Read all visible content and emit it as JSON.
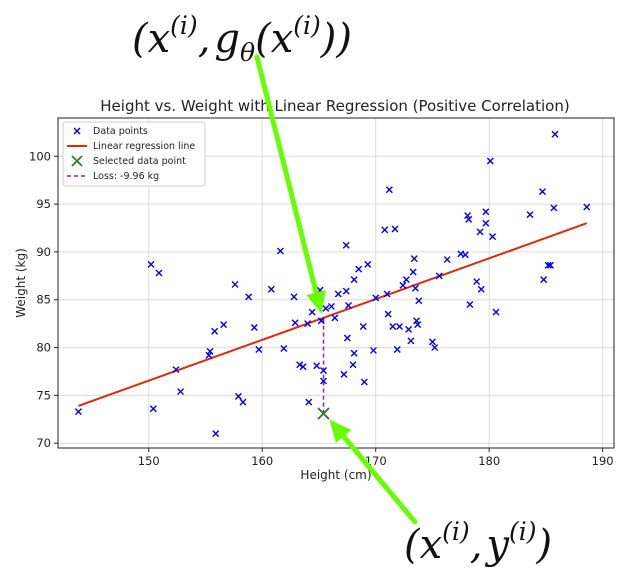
{
  "annotations": {
    "top_label": {
      "open": "(",
      "x": "x",
      "sup_i_1": "(i)",
      "comma": ",",
      "g": "g",
      "theta": "θ",
      "paren_open": "(",
      "x2": "x",
      "sup_i_2": "(i)",
      "close": "))"
    },
    "bottom_label": {
      "open": "(",
      "x": "x",
      "sup_i_1": "(i)",
      "comma": ",",
      "y": "y",
      "sup_i_2": "(i)",
      "close": ")"
    },
    "arrow_color": "#66ff00"
  },
  "chart_data": {
    "type": "scatter",
    "title": "Height vs. Weight with Linear Regression (Positive Correlation)",
    "xlabel": "Height (cm)",
    "ylabel": "Weight (kg)",
    "xlim": [
      142,
      191
    ],
    "ylim": [
      69.5,
      104
    ],
    "xticks": [
      150,
      160,
      170,
      180,
      190
    ],
    "yticks": [
      70,
      75,
      80,
      85,
      90,
      95,
      100
    ],
    "grid": true,
    "legend": {
      "position": "top-left",
      "entries": [
        "Data points",
        "Linear regression line",
        "Selected data point",
        "Loss: -9.96 kg"
      ]
    },
    "colors": {
      "points": "#0000ee",
      "line": "#dd2a0a",
      "selected": "#2e7d32",
      "loss": "#8e24aa"
    },
    "regression_line": {
      "x": [
        143.8,
        188.6
      ],
      "y": [
        73.9,
        93.0
      ]
    },
    "selected_point": {
      "x": 165.4,
      "y": 73.1
    },
    "predicted_point": {
      "x": 165.4,
      "y": 83.1
    },
    "loss_kg": -9.96,
    "series": [
      {
        "name": "Data points",
        "points": [
          [
            143.8,
            73.3
          ],
          [
            150.2,
            88.7
          ],
          [
            150.4,
            73.6
          ],
          [
            150.9,
            87.8
          ],
          [
            152.4,
            77.7
          ],
          [
            152.8,
            75.4
          ],
          [
            155.3,
            79.2
          ],
          [
            155.4,
            79.6
          ],
          [
            155.8,
            81.7
          ],
          [
            155.9,
            71.0
          ],
          [
            156.6,
            82.4
          ],
          [
            157.6,
            86.6
          ],
          [
            157.9,
            74.9
          ],
          [
            158.3,
            74.3
          ],
          [
            158.8,
            85.3
          ],
          [
            159.3,
            82.1
          ],
          [
            159.7,
            79.8
          ],
          [
            160.8,
            86.1
          ],
          [
            161.6,
            90.1
          ],
          [
            161.9,
            79.9
          ],
          [
            162.8,
            85.3
          ],
          [
            162.9,
            82.6
          ],
          [
            163.3,
            78.2
          ],
          [
            163.6,
            78.0
          ],
          [
            164.0,
            82.5
          ],
          [
            164.1,
            74.3
          ],
          [
            164.4,
            83.7
          ],
          [
            164.8,
            78.1
          ],
          [
            165.1,
            86.0
          ],
          [
            165.2,
            82.8
          ],
          [
            165.4,
            76.5
          ],
          [
            165.4,
            77.6
          ],
          [
            165.6,
            84.1
          ],
          [
            166.1,
            84.3
          ],
          [
            166.4,
            83.1
          ],
          [
            166.7,
            85.6
          ],
          [
            167.2,
            77.2
          ],
          [
            167.4,
            85.9
          ],
          [
            167.4,
            90.7
          ],
          [
            167.5,
            81.0
          ],
          [
            167.6,
            84.4
          ],
          [
            168.0,
            78.2
          ],
          [
            168.1,
            79.4
          ],
          [
            168.1,
            87.1
          ],
          [
            168.5,
            88.2
          ],
          [
            168.9,
            82.2
          ],
          [
            169.0,
            76.4
          ],
          [
            169.3,
            88.7
          ],
          [
            169.8,
            79.7
          ],
          [
            170.0,
            85.2
          ],
          [
            170.8,
            92.3
          ],
          [
            171.0,
            85.6
          ],
          [
            171.1,
            83.5
          ],
          [
            171.2,
            96.5
          ],
          [
            171.5,
            82.2
          ],
          [
            171.7,
            92.4
          ],
          [
            171.9,
            79.8
          ],
          [
            172.1,
            82.2
          ],
          [
            172.4,
            86.5
          ],
          [
            172.7,
            87.1
          ],
          [
            172.9,
            81.9
          ],
          [
            173.1,
            80.7
          ],
          [
            173.3,
            87.9
          ],
          [
            173.4,
            89.3
          ],
          [
            173.5,
            86.2
          ],
          [
            173.6,
            82.8
          ],
          [
            173.7,
            82.4
          ],
          [
            173.8,
            84.9
          ],
          [
            175.0,
            80.6
          ],
          [
            175.2,
            80.0
          ],
          [
            175.6,
            87.5
          ],
          [
            176.3,
            89.2
          ],
          [
            177.5,
            89.8
          ],
          [
            177.9,
            89.7
          ],
          [
            178.1,
            93.8
          ],
          [
            178.2,
            93.4
          ],
          [
            178.3,
            84.5
          ],
          [
            178.9,
            86.9
          ],
          [
            179.2,
            92.1
          ],
          [
            179.3,
            86.1
          ],
          [
            179.7,
            93.0
          ],
          [
            179.7,
            94.2
          ],
          [
            180.1,
            99.5
          ],
          [
            180.3,
            91.6
          ],
          [
            180.6,
            83.7
          ],
          [
            183.6,
            93.9
          ],
          [
            184.7,
            96.3
          ],
          [
            184.8,
            87.1
          ],
          [
            185.2,
            88.6
          ],
          [
            185.4,
            88.6
          ],
          [
            185.7,
            94.6
          ],
          [
            185.8,
            102.3
          ],
          [
            188.6,
            94.7
          ]
        ]
      }
    ]
  }
}
